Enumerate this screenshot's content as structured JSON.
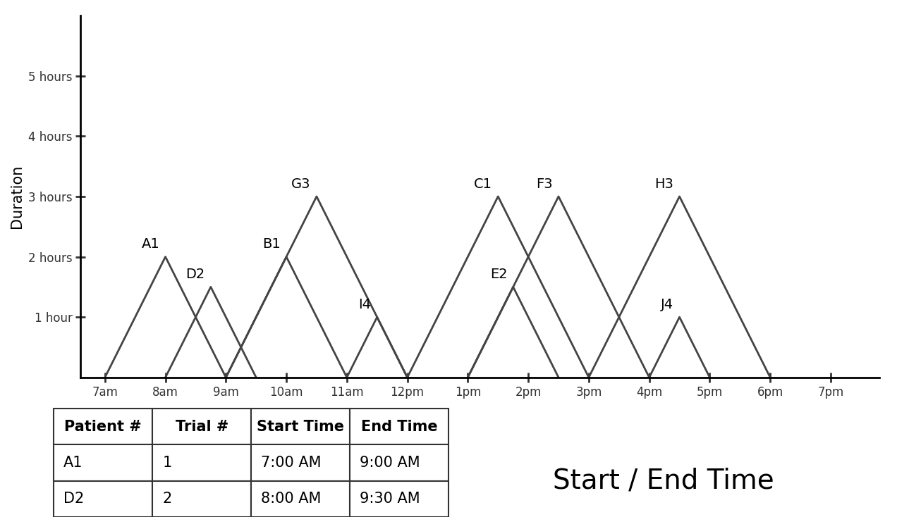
{
  "chart_data": {
    "type": "line",
    "x_label": "Start / End Time",
    "y_label": "Duration",
    "color": "#444444",
    "xlim": [
      6.6,
      19.8
    ],
    "xticks": [
      {
        "value": 7,
        "label": "7am"
      },
      {
        "value": 8,
        "label": "8am"
      },
      {
        "value": 9,
        "label": "9am"
      },
      {
        "value": 10,
        "label": "10am"
      },
      {
        "value": 11,
        "label": "11am"
      },
      {
        "value": 12,
        "label": "12pm"
      },
      {
        "value": 13,
        "label": "1pm"
      },
      {
        "value": 14,
        "label": "2pm"
      },
      {
        "value": 15,
        "label": "3pm"
      },
      {
        "value": 16,
        "label": "4pm"
      },
      {
        "value": 17,
        "label": "5pm"
      },
      {
        "value": 18,
        "label": "6pm"
      },
      {
        "value": 19,
        "label": "7pm"
      }
    ],
    "ylim": [
      0,
      6
    ],
    "yticks": [
      {
        "value": 1,
        "label": "1 hour"
      },
      {
        "value": 2,
        "label": "2 hours"
      },
      {
        "value": 3,
        "label": "3 hours"
      },
      {
        "value": 4,
        "label": "4 hours"
      },
      {
        "value": 5,
        "label": "5 hours"
      }
    ],
    "series": [
      {
        "name": "A1",
        "x": [
          7,
          8,
          9
        ],
        "values": [
          0,
          2,
          0
        ]
      },
      {
        "name": "D2",
        "x": [
          8,
          8.75,
          9.5
        ],
        "values": [
          0,
          1.5,
          0
        ]
      },
      {
        "name": "B1",
        "x": [
          9,
          10,
          11
        ],
        "values": [
          0,
          2,
          0
        ]
      },
      {
        "name": "G3",
        "x": [
          9,
          10.5,
          12
        ],
        "values": [
          0,
          3,
          0
        ]
      },
      {
        "name": "I4",
        "x": [
          11,
          11.5,
          12
        ],
        "values": [
          0,
          1,
          0
        ]
      },
      {
        "name": "C1",
        "x": [
          12,
          13.5,
          15
        ],
        "values": [
          0,
          3,
          0
        ]
      },
      {
        "name": "E2",
        "x": [
          13,
          13.75,
          14.5
        ],
        "values": [
          0,
          1.5,
          0
        ]
      },
      {
        "name": "F3",
        "x": [
          13,
          14.5,
          16
        ],
        "values": [
          0,
          3,
          0
        ]
      },
      {
        "name": "H3",
        "x": [
          15,
          16.5,
          18
        ],
        "values": [
          0,
          3,
          0
        ]
      },
      {
        "name": "J4",
        "x": [
          16,
          16.5,
          17
        ],
        "values": [
          0,
          1,
          0
        ]
      }
    ]
  },
  "table": {
    "columns": [
      "Patient #",
      "Trial #",
      "Start Time",
      "End Time"
    ],
    "rows": [
      [
        "A1",
        "1",
        "7:00 AM",
        "9:00 AM"
      ],
      [
        "D2",
        "2",
        "8:00 AM",
        "9:30 AM"
      ]
    ]
  }
}
